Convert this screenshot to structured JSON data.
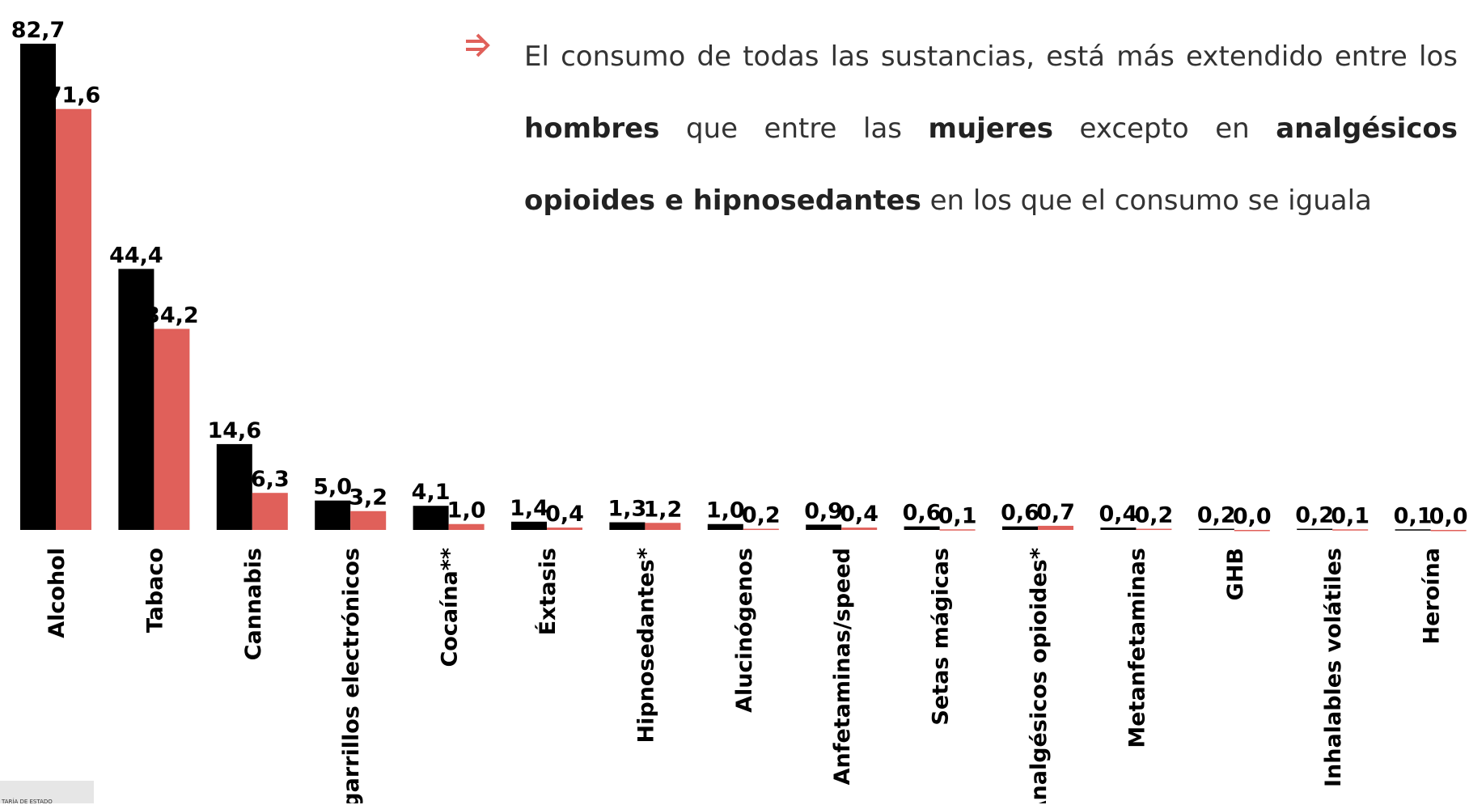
{
  "chart_data": {
    "type": "bar",
    "annotation": [
      {
        "text": "El consumo de todas las sustancias, está más extendido entre los ",
        "bold": false
      },
      {
        "text": "hombres",
        "bold": true
      },
      {
        "text": " que entre las ",
        "bold": false
      },
      {
        "text": "mujeres",
        "bold": true
      },
      {
        "text": " excepto en ",
        "bold": false
      },
      {
        "text": "analgésicos opioides e hipnosedantes",
        "bold": true
      },
      {
        "text": " en los que el consumo se iguala",
        "bold": false
      }
    ],
    "categories": [
      "Alcohol",
      "Tabaco",
      "Cannabis",
      "Cigarrillos electrónicos",
      "Cocaína**",
      "Éxtasis",
      "Hipnosedantes*",
      "Alucinógenos",
      "Anfetaminas/speed",
      "Setas mágicas",
      "Analgésicos opioides*",
      "Metanfetaminas",
      "GHB",
      "Inhalables volátiles",
      "Heroína"
    ],
    "series": [
      {
        "color": "#000000",
        "values": [
          82.7,
          44.4,
          14.6,
          5.0,
          4.1,
          1.4,
          1.3,
          1.0,
          0.9,
          0.6,
          0.6,
          0.4,
          0.2,
          0.2,
          0.1
        ],
        "value_labels": [
          "82,7",
          "44,4",
          "14,6",
          "5,0",
          "4,1",
          "1,4",
          "1,3",
          "1,0",
          "0,9",
          "0,6",
          "0,6",
          "0,4",
          "0,2",
          "0,2",
          "0,1"
        ]
      },
      {
        "color": "#e0605a",
        "values": [
          71.6,
          34.2,
          6.3,
          3.2,
          1.0,
          0.4,
          1.2,
          0.2,
          0.4,
          0.1,
          0.7,
          0.2,
          0.0,
          0.1,
          0.0
        ],
        "value_labels": [
          "71,6",
          "34,2",
          "6,3",
          "3,2",
          "1,0",
          "0,4",
          "1,2",
          "0,2",
          "0,4",
          "0,1",
          "0,7",
          "0,2",
          "0,0",
          "0,1",
          "0,0"
        ]
      }
    ],
    "ylim": [
      0,
      90
    ],
    "logo_text": "TARÍA DE ESTADO"
  }
}
